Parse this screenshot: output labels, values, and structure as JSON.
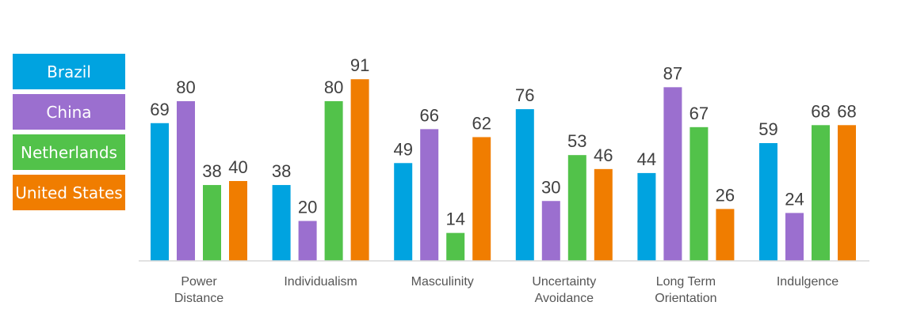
{
  "chart_data": {
    "type": "bar",
    "categories": [
      [
        "Power",
        "Distance"
      ],
      [
        "Individualism"
      ],
      [
        "Masculinity"
      ],
      [
        "Uncertainty",
        "Avoidance"
      ],
      [
        "Long Term",
        "Orientation"
      ],
      [
        "Indulgence"
      ]
    ],
    "series": [
      {
        "name": "Brazil",
        "color": "#00a3e0",
        "values": [
          69,
          38,
          49,
          76,
          44,
          59
        ]
      },
      {
        "name": "China",
        "color": "#9b6fcf",
        "values": [
          80,
          20,
          66,
          30,
          87,
          24
        ]
      },
      {
        "name": "Netherlands",
        "color": "#52c24a",
        "values": [
          38,
          80,
          14,
          53,
          67,
          68
        ]
      },
      {
        "name": "United States",
        "color": "#f07d00",
        "values": [
          40,
          91,
          62,
          46,
          26,
          68
        ]
      }
    ],
    "ylim": [
      0,
      100
    ],
    "grid": false,
    "legend": "left"
  }
}
